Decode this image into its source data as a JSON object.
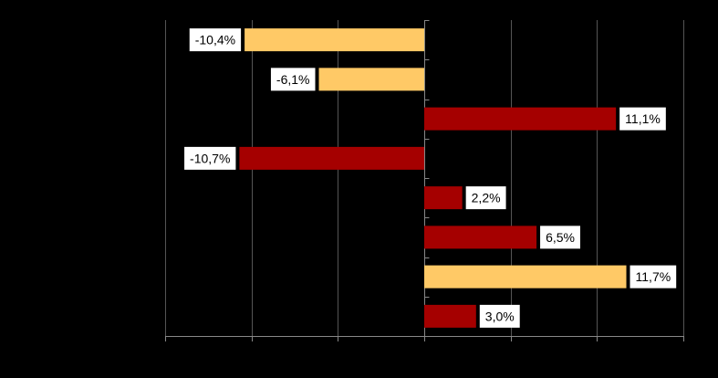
{
  "chart_data": {
    "type": "bar",
    "orientation": "horizontal",
    "title": "",
    "xlabel": "",
    "ylabel": "",
    "xlim": [
      -15,
      15
    ],
    "grid": true,
    "legend": "none",
    "bars": [
      {
        "value": -10.4,
        "label": "-10,4%",
        "color": "#FFC966"
      },
      {
        "value": -6.1,
        "label": "-6,1%",
        "color": "#FFC966"
      },
      {
        "value": 11.1,
        "label": "11,1%",
        "color": "#A50000"
      },
      {
        "value": -10.7,
        "label": "-10,7%",
        "color": "#A50000"
      },
      {
        "value": 2.2,
        "label": "2,2%",
        "color": "#A50000"
      },
      {
        "value": 6.5,
        "label": "6,5%",
        "color": "#A50000"
      },
      {
        "value": 11.7,
        "label": "11,7%",
        "color": "#FFC966"
      },
      {
        "value": 3.0,
        "label": "3,0%",
        "color": "#A50000"
      }
    ]
  },
  "colors": {
    "background": "#000000",
    "gridline": "#555555",
    "axis": "#888888",
    "label_box": "#FFFFFF",
    "label_text": "#000000"
  }
}
